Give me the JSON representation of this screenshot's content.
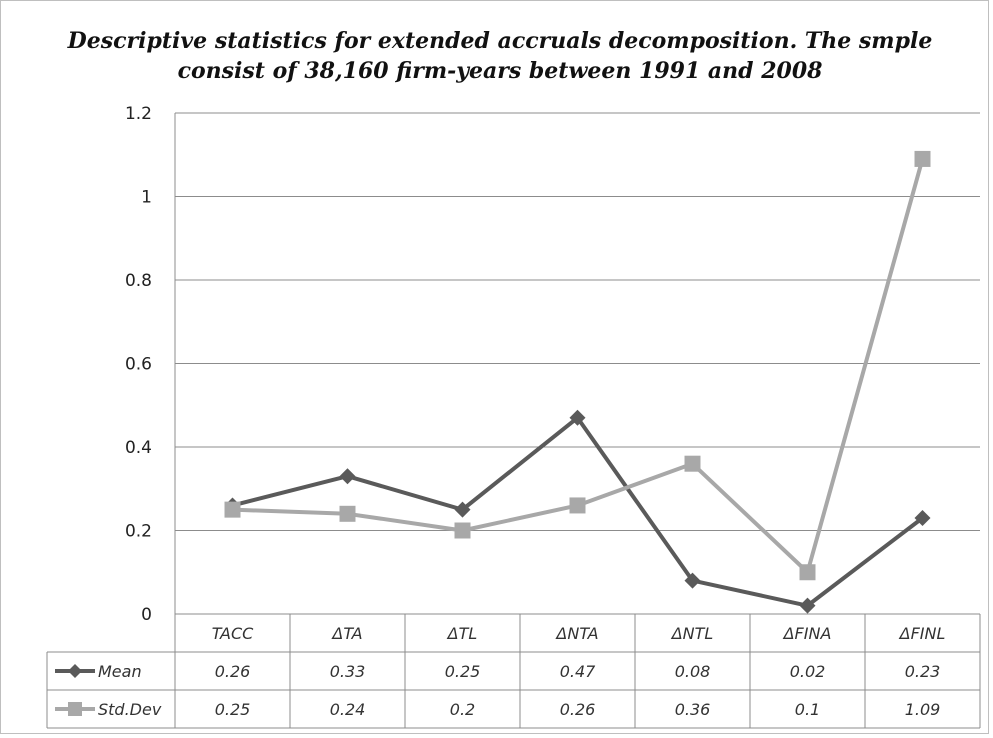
{
  "chart_data": {
    "type": "line",
    "title_lines": [
      "Descriptive statistics for extended accruals decomposition. The smple",
      "consist of  38,160 firm-years between 1991 and 2008"
    ],
    "categories": [
      "TACC",
      "ΔTA",
      "ΔTL",
      "ΔNTA",
      "ΔNTL",
      "ΔFINA",
      "ΔFINL"
    ],
    "series": [
      {
        "name": "Mean",
        "values": [
          0.26,
          0.33,
          0.25,
          0.47,
          0.08,
          0.02,
          0.23
        ],
        "labels": [
          "0.26",
          "0.33",
          "0.25",
          "0.47",
          "0.08",
          "0.02",
          "0.23"
        ],
        "color": "#5a5a5a",
        "marker": "diamond"
      },
      {
        "name": "Std.Dev",
        "values": [
          0.25,
          0.24,
          0.2,
          0.26,
          0.36,
          0.1,
          1.09
        ],
        "labels": [
          "0.25",
          "0.24",
          "0.2",
          "0.26",
          "0.36",
          "0.1",
          "1.09"
        ],
        "color": "#a8a8a8",
        "marker": "square"
      }
    ],
    "y_ticks": [
      "0",
      "0.2",
      "0.4",
      "0.6",
      "0.8",
      "1",
      "1.2"
    ],
    "ylim": [
      0,
      1.2
    ],
    "grid": true,
    "legend": "data-table-left"
  }
}
